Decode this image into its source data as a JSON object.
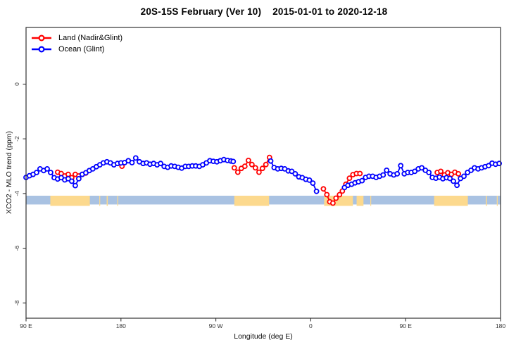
{
  "title": {
    "region_period": "20S-15S February (Ver 10)",
    "date_range": "2015-01-01 to 2020-12-18"
  },
  "legend": {
    "items": [
      {
        "label": "Land (Nadir&Glint)",
        "color": "#ff0000"
      },
      {
        "label": "Ocean (Glint)",
        "color": "#0000ff"
      }
    ]
  },
  "chart_data": {
    "type": "line",
    "title": "20S-15S February (Ver 10)   2015-01-01 to 2020-12-18",
    "xlabel": "Longitude (deg E)",
    "ylabel": "XCO2 - MLO trend (ppm)",
    "x_axis": {
      "note": "longitude axis starts at 90E and wraps eastward around the globe to 180 (450 deg span)",
      "span_deg": [
        0,
        450
      ],
      "ticks": [
        {
          "pos_deg": 0,
          "label": "90 E"
        },
        {
          "pos_deg": 90,
          "label": "180"
        },
        {
          "pos_deg": 180,
          "label": "90 W"
        },
        {
          "pos_deg": 270,
          "label": "0"
        },
        {
          "pos_deg": 360,
          "label": "90 E"
        },
        {
          "pos_deg": 450,
          "label": "180"
        }
      ]
    },
    "y_axis": {
      "ylim": [
        -8.6,
        2.1
      ],
      "ticks": [
        0,
        -2,
        -4,
        -6,
        -8
      ]
    },
    "grid": false,
    "legend_position": "top-left inside",
    "series": [
      {
        "name": "Land (Nadir&Glint)",
        "color": "#ff0000",
        "marker": "open-circle",
        "segments": [
          [
            [
              30,
              -3.22
            ],
            [
              33.3,
              -3.27
            ],
            [
              36.7,
              -3.36
            ],
            [
              40,
              -3.3
            ],
            [
              43.3,
              -3.42
            ],
            [
              46.7,
              -3.3
            ],
            [
              50,
              -3.36
            ],
            [
              53.3,
              -3.3
            ],
            [
              56.7,
              -3.25
            ]
          ],
          [
            [
              91,
              -3.0
            ]
          ],
          [
            [
              197.5,
              -3.06
            ],
            [
              200.8,
              -3.22
            ],
            [
              204.2,
              -3.08
            ],
            [
              207.5,
              -3.0
            ],
            [
              210.9,
              -2.79
            ],
            [
              214.2,
              -2.94
            ],
            [
              217.5,
              -3.06
            ],
            [
              220.9,
              -3.22
            ],
            [
              224.2,
              -3.08
            ],
            [
              227.5,
              -2.94
            ],
            [
              230.9,
              -2.68
            ]
          ],
          [
            [
              282,
              -3.83
            ],
            [
              285.3,
              -4.04
            ],
            [
              288,
              -4.3
            ],
            [
              291,
              -4.35
            ],
            [
              294,
              -4.17
            ],
            [
              297.3,
              -4.04
            ],
            [
              300,
              -3.91
            ],
            [
              303.3,
              -3.66
            ],
            [
              306.7,
              -3.44
            ],
            [
              310,
              -3.31
            ],
            [
              313.3,
              -3.27
            ],
            [
              316.7,
              -3.27
            ]
          ],
          [
            [
              390,
              -3.23
            ],
            [
              393.3,
              -3.19
            ],
            [
              396.7,
              -3.32
            ],
            [
              400,
              -3.24
            ],
            [
              403.3,
              -3.3
            ],
            [
              406.7,
              -3.22
            ],
            [
              410,
              -3.28
            ]
          ]
        ]
      },
      {
        "name": "Ocean (Glint)",
        "color": "#0000ff",
        "marker": "open-circle",
        "segments": [
          [
            [
              0,
              -3.41
            ],
            [
              3.3,
              -3.35
            ],
            [
              6.7,
              -3.3
            ],
            [
              10,
              -3.23
            ],
            [
              13.3,
              -3.1
            ],
            [
              16.7,
              -3.16
            ],
            [
              20,
              -3.1
            ],
            [
              23.3,
              -3.23
            ],
            [
              26.7,
              -3.42
            ],
            [
              30,
              -3.47
            ],
            [
              33.3,
              -3.42
            ],
            [
              36.7,
              -3.5
            ],
            [
              40,
              -3.46
            ],
            [
              43.3,
              -3.55
            ],
            [
              46.7,
              -3.71
            ],
            [
              50,
              -3.46
            ],
            [
              53.3,
              -3.3
            ],
            [
              56.7,
              -3.24
            ],
            [
              60,
              -3.16
            ],
            [
              63.3,
              -3.1
            ],
            [
              66.7,
              -3.02
            ],
            [
              70,
              -2.95
            ],
            [
              73.3,
              -2.88
            ],
            [
              76.7,
              -2.84
            ],
            [
              80,
              -2.88
            ],
            [
              83.3,
              -2.95
            ],
            [
              86.7,
              -2.9
            ],
            [
              90,
              -2.88
            ],
            [
              93.5,
              -2.87
            ],
            [
              97,
              -2.8
            ],
            [
              100.5,
              -2.87
            ],
            [
              104,
              -2.7
            ],
            [
              107.5,
              -2.84
            ],
            [
              111,
              -2.9
            ],
            [
              114.3,
              -2.88
            ],
            [
              117.6,
              -2.93
            ],
            [
              121,
              -2.9
            ],
            [
              124.3,
              -2.95
            ],
            [
              127.6,
              -2.9
            ],
            [
              131,
              -3.01
            ],
            [
              134.3,
              -3.04
            ],
            [
              137.6,
              -2.99
            ],
            [
              141,
              -3.01
            ],
            [
              144.3,
              -3.04
            ],
            [
              147.6,
              -3.07
            ],
            [
              151,
              -3.01
            ],
            [
              154.3,
              -3.01
            ],
            [
              157.6,
              -2.99
            ],
            [
              161,
              -2.99
            ],
            [
              164.3,
              -3.01
            ],
            [
              167.6,
              -2.95
            ],
            [
              171,
              -2.88
            ],
            [
              174.3,
              -2.8
            ],
            [
              177.6,
              -2.82
            ],
            [
              181,
              -2.84
            ],
            [
              184.3,
              -2.8
            ],
            [
              187.6,
              -2.76
            ],
            [
              191,
              -2.79
            ],
            [
              194.3,
              -2.81
            ],
            [
              196.5,
              -2.83
            ]
          ],
          [
            [
              232,
              -2.81
            ],
            [
              235.3,
              -3.05
            ],
            [
              238.7,
              -3.1
            ],
            [
              242,
              -3.08
            ],
            [
              245.3,
              -3.1
            ],
            [
              248.7,
              -3.17
            ],
            [
              252,
              -3.19
            ],
            [
              255.3,
              -3.28
            ],
            [
              258.7,
              -3.39
            ],
            [
              262,
              -3.42
            ],
            [
              265.3,
              -3.48
            ],
            [
              268.7,
              -3.51
            ],
            [
              272,
              -3.62
            ],
            [
              275.5,
              -3.92
            ]
          ],
          [
            [
              302,
              -3.78
            ],
            [
              305.3,
              -3.7
            ],
            [
              308.7,
              -3.66
            ],
            [
              312,
              -3.61
            ],
            [
              315.3,
              -3.57
            ],
            [
              318.7,
              -3.53
            ],
            [
              322,
              -3.41
            ],
            [
              325.3,
              -3.37
            ],
            [
              328.7,
              -3.37
            ],
            [
              332,
              -3.41
            ],
            [
              335.3,
              -3.37
            ],
            [
              338.7,
              -3.32
            ],
            [
              342,
              -3.15
            ],
            [
              345.3,
              -3.28
            ],
            [
              348.7,
              -3.32
            ],
            [
              352,
              -3.28
            ],
            [
              355.3,
              -2.98
            ],
            [
              358.7,
              -3.28
            ],
            [
              362,
              -3.23
            ],
            [
              365.3,
              -3.23
            ],
            [
              368.7,
              -3.19
            ],
            [
              372,
              -3.1
            ],
            [
              375.3,
              -3.06
            ],
            [
              378.7,
              -3.15
            ],
            [
              382,
              -3.23
            ],
            [
              385.3,
              -3.41
            ],
            [
              388.7,
              -3.44
            ],
            [
              392,
              -3.4
            ],
            [
              395.3,
              -3.46
            ],
            [
              398.7,
              -3.42
            ],
            [
              402,
              -3.45
            ],
            [
              405.3,
              -3.55
            ],
            [
              408.7,
              -3.7
            ],
            [
              412,
              -3.45
            ],
            [
              415.3,
              -3.37
            ],
            [
              418.7,
              -3.23
            ],
            [
              422,
              -3.15
            ],
            [
              425.3,
              -3.06
            ],
            [
              428.7,
              -3.1
            ],
            [
              432,
              -3.06
            ],
            [
              435.3,
              -3.02
            ],
            [
              438.7,
              -2.98
            ],
            [
              442,
              -2.89
            ],
            [
              445.3,
              -2.93
            ],
            [
              448.7,
              -2.9
            ]
          ]
        ]
      }
    ],
    "map_strip": {
      "description": "land/ocean map band along the 20S-15S latitude strip",
      "value_range": [
        -4.08,
        -4.4
      ],
      "ocean_color": "#a9c2e2",
      "land_color": "#fcd98e",
      "land_segments_deg": [
        [
          23,
          60.5
        ],
        [
          69.5,
          70.3
        ],
        [
          76.5,
          77.5
        ],
        [
          86.5,
          87.3
        ],
        [
          197.5,
          230.5
        ],
        [
          282.7,
          310
        ],
        [
          313.5,
          320
        ],
        [
          326.5,
          327.3
        ],
        [
          387,
          419
        ],
        [
          436,
          437
        ],
        [
          446.5,
          447.3
        ]
      ]
    },
    "colors": {
      "axis": "#333333",
      "tick_text": "#333333"
    }
  }
}
